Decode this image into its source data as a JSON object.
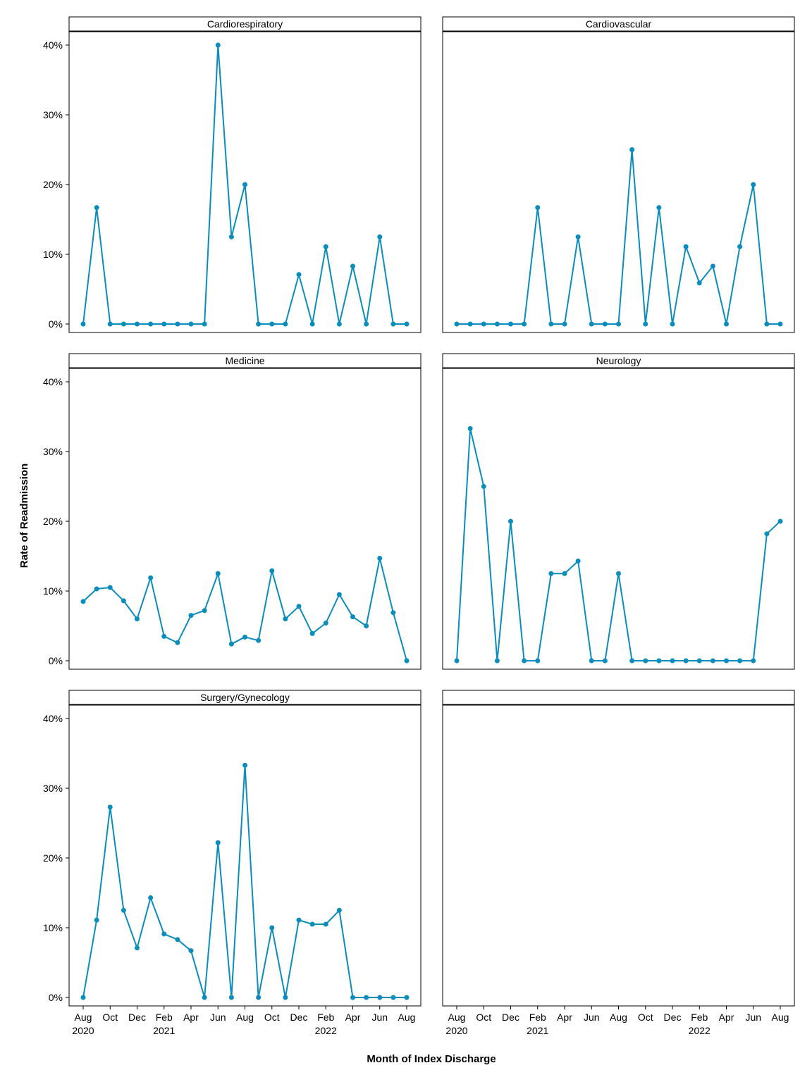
{
  "colors": {
    "series": "#0a8cbc",
    "frame": "#000000",
    "background": "#ffffff"
  },
  "chart_data": {
    "type": "line",
    "layout": "facet-grid 3x2",
    "y_axis": {
      "label": "Rate of Readmission",
      "ylim": [
        0,
        0.4
      ],
      "ticks": [
        0,
        0.1,
        0.2,
        0.3,
        0.4
      ],
      "tick_labels": [
        "0%",
        "10%",
        "20%",
        "30%",
        "40%"
      ],
      "format": "percent"
    },
    "x_axis": {
      "label": "Month of Index Discharge",
      "months": [
        "2020-08",
        "2020-09",
        "2020-10",
        "2020-11",
        "2020-12",
        "2021-01",
        "2021-02",
        "2021-03",
        "2021-04",
        "2021-05",
        "2021-06",
        "2021-07",
        "2021-08",
        "2021-09",
        "2021-10",
        "2021-11",
        "2021-12",
        "2022-01",
        "2022-02",
        "2022-03",
        "2022-04",
        "2022-05",
        "2022-06",
        "2022-07",
        "2022-08"
      ],
      "ticks": [
        {
          "i": 0,
          "month": "Aug",
          "year": "2020"
        },
        {
          "i": 2,
          "month": "Oct",
          "year": ""
        },
        {
          "i": 4,
          "month": "Dec",
          "year": ""
        },
        {
          "i": 6,
          "month": "Feb",
          "year": "2021"
        },
        {
          "i": 8,
          "month": "Apr",
          "year": ""
        },
        {
          "i": 10,
          "month": "Jun",
          "year": ""
        },
        {
          "i": 12,
          "month": "Aug",
          "year": ""
        },
        {
          "i": 14,
          "month": "Oct",
          "year": ""
        },
        {
          "i": 16,
          "month": "Dec",
          "year": ""
        },
        {
          "i": 18,
          "month": "Feb",
          "year": "2022"
        },
        {
          "i": 20,
          "month": "Apr",
          "year": ""
        },
        {
          "i": 22,
          "month": "Jun",
          "year": ""
        },
        {
          "i": 24,
          "month": "Aug",
          "year": ""
        }
      ]
    },
    "grid": false,
    "legend": "none",
    "panels": [
      {
        "name": "Cardiorespiratory",
        "values": [
          0,
          0.167,
          0,
          0,
          0,
          0,
          0,
          0,
          0,
          0,
          0.4,
          0.125,
          0.2,
          0,
          0,
          0,
          0.071,
          0,
          0.111,
          0,
          0.083,
          0,
          0.125,
          0,
          0
        ]
      },
      {
        "name": "Cardiovascular",
        "values": [
          0,
          0,
          0,
          0,
          0,
          0,
          0.167,
          0,
          0,
          0.125,
          0,
          0,
          0,
          0.25,
          0,
          0.167,
          0,
          0.111,
          0.059,
          0.083,
          0,
          0.111,
          0.2,
          0,
          0
        ]
      },
      {
        "name": "Medicine",
        "values": [
          0.085,
          0.103,
          0.105,
          0.086,
          0.06,
          0.119,
          0.035,
          0.026,
          0.065,
          0.072,
          0.125,
          0.024,
          0.034,
          0.029,
          0.129,
          0.06,
          0.078,
          0.039,
          0.054,
          0.095,
          0.063,
          0.05,
          0.147,
          0.069,
          0
        ]
      },
      {
        "name": "Neurology",
        "values": [
          0,
          0.333,
          0.25,
          0,
          0.2,
          0,
          0,
          0.125,
          0.125,
          0.143,
          0,
          0,
          0.125,
          0,
          0,
          0,
          0,
          0,
          0,
          0,
          0,
          0,
          0,
          0.182,
          0.2
        ]
      },
      {
        "name": "Surgery/Gynecology",
        "values": [
          0,
          0.111,
          0.273,
          0.125,
          0.071,
          0.143,
          0.091,
          0.083,
          0.067,
          0,
          0.222,
          0,
          0.333,
          0,
          0.1,
          0,
          0.111,
          0.105,
          0.105,
          0.125,
          0,
          0,
          0,
          0,
          0
        ]
      },
      {
        "name": "",
        "values": []
      }
    ]
  }
}
